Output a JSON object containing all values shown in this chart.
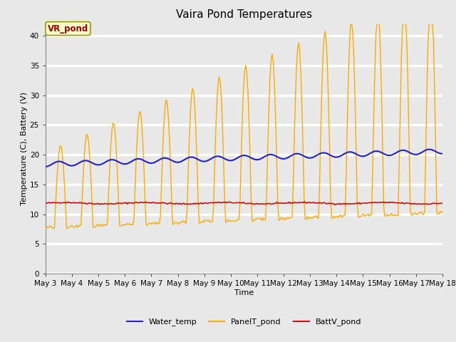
{
  "title": "Vaira Pond Temperatures",
  "xlabel": "Time",
  "ylabel": "Temperature (C), Battery (V)",
  "annotation_text": "VR_pond",
  "ylim": [
    0,
    42
  ],
  "yticks": [
    0,
    5,
    10,
    15,
    20,
    25,
    30,
    35,
    40
  ],
  "x_labels": [
    "May 3",
    "May 4",
    "May 5",
    "May 6",
    "May 7",
    "May 8",
    "May 9",
    "May 10",
    "May 11",
    "May 12",
    "May 13",
    "May 14",
    "May 15",
    "May 16",
    "May 17",
    "May 18"
  ],
  "title_fontsize": 11,
  "label_fontsize": 8,
  "tick_fontsize": 7.5,
  "legend_fontsize": 8,
  "water_color": "#2222cc",
  "panel_color": "#ffaa00",
  "batt_color": "#cc1111",
  "bg_color": "#e8e8e8",
  "fig_color": "#e8e8e8",
  "grid_color": "#d0d0d0",
  "annotation_bg": "#ffffcc",
  "annotation_border": "#999900"
}
